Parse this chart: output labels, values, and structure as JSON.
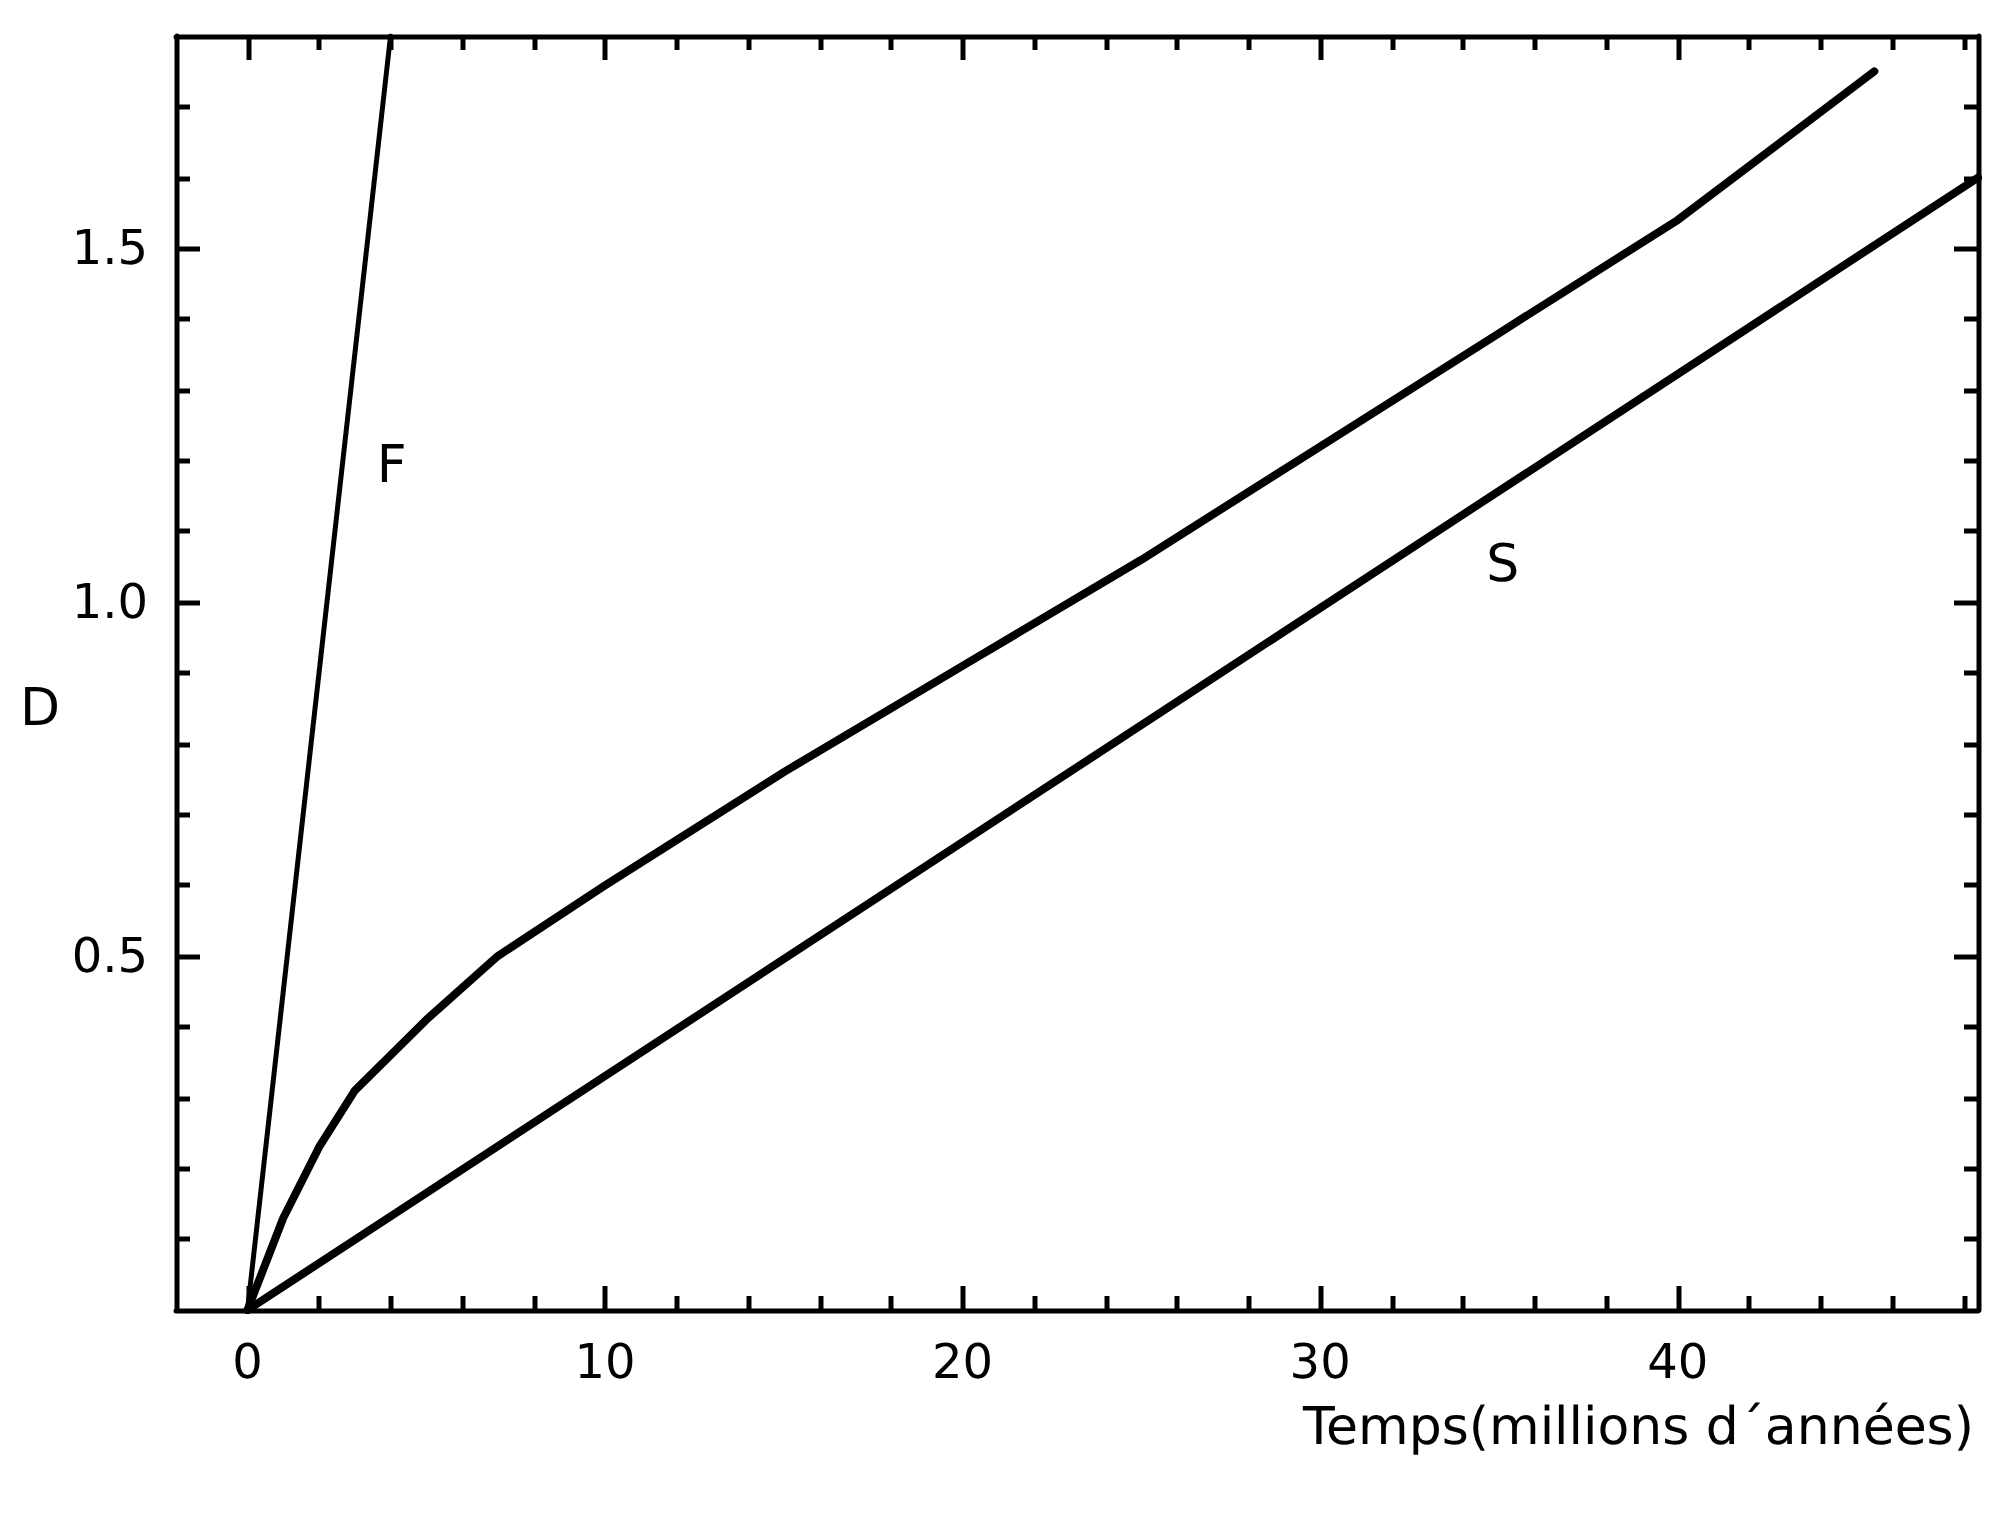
{
  "chart_data": {
    "type": "line",
    "xlabel": "Temps(millions d´années)",
    "ylabel": "D",
    "xlim": [
      -2,
      48.4
    ],
    "ylim": [
      0,
      1.8
    ],
    "xticks": [
      0,
      {
        "value": 2,
        "label": null
      },
      {
        "value": 4,
        "label": null
      },
      {
        "value": 6,
        "label": null
      },
      {
        "value": 8,
        "label": null
      },
      10,
      {
        "value": 12,
        "label": null
      },
      {
        "value": 14,
        "label": null
      },
      {
        "value": 16,
        "label": null
      },
      {
        "value": 18,
        "label": null
      },
      20,
      {
        "value": 22,
        "label": null
      },
      {
        "value": 24,
        "label": null
      },
      {
        "value": 26,
        "label": null
      },
      {
        "value": 28,
        "label": null
      },
      30,
      {
        "value": 32,
        "label": null
      },
      {
        "value": 34,
        "label": null
      },
      {
        "value": 36,
        "label": null
      },
      {
        "value": 38,
        "label": null
      },
      40,
      {
        "value": 42,
        "label": null
      },
      {
        "value": 44,
        "label": null
      },
      {
        "value": 46,
        "label": null
      },
      {
        "value": 48,
        "label": null
      }
    ],
    "yticks": [
      {
        "value": 0.1,
        "label": null
      },
      {
        "value": 0.2,
        "label": null
      },
      {
        "value": 0.3,
        "label": null
      },
      {
        "value": 0.4,
        "label": null
      },
      {
        "value": 0.5,
        "label": "0.5"
      },
      {
        "value": 0.6,
        "label": null
      },
      {
        "value": 0.7,
        "label": null
      },
      {
        "value": 0.8,
        "label": null
      },
      {
        "value": 0.9,
        "label": null
      },
      {
        "value": 1,
        "label": "1.0"
      },
      {
        "value": 1.1,
        "label": null
      },
      {
        "value": 1.2,
        "label": null
      },
      {
        "value": 1.3,
        "label": null
      },
      {
        "value": 1.4,
        "label": null
      },
      {
        "value": 1.5,
        "label": "1.5"
      },
      {
        "value": 1.6,
        "label": null
      },
      {
        "value": 1.7,
        "label": null
      }
    ],
    "grid": false,
    "marker": "none",
    "line_style": "solid",
    "series": [
      {
        "name": "F",
        "color": "#000000",
        "x": [
          0,
          4
        ],
        "values": [
          0,
          1.8
        ]
      },
      {
        "color": "#000000",
        "x": [
          0,
          1,
          2,
          3,
          5,
          7,
          10,
          15,
          20,
          25,
          30,
          35,
          40,
          45.5
        ],
        "values": [
          0,
          0.13,
          0.23,
          0.31,
          0.41,
          0.5,
          0.6,
          0.76,
          0.91,
          1.06,
          1.22,
          1.38,
          1.54,
          1.75
        ]
      },
      {
        "name": "S",
        "color": "#000000",
        "x": [
          0,
          48.4
        ],
        "values": [
          0,
          1.6
        ]
      }
    ]
  }
}
